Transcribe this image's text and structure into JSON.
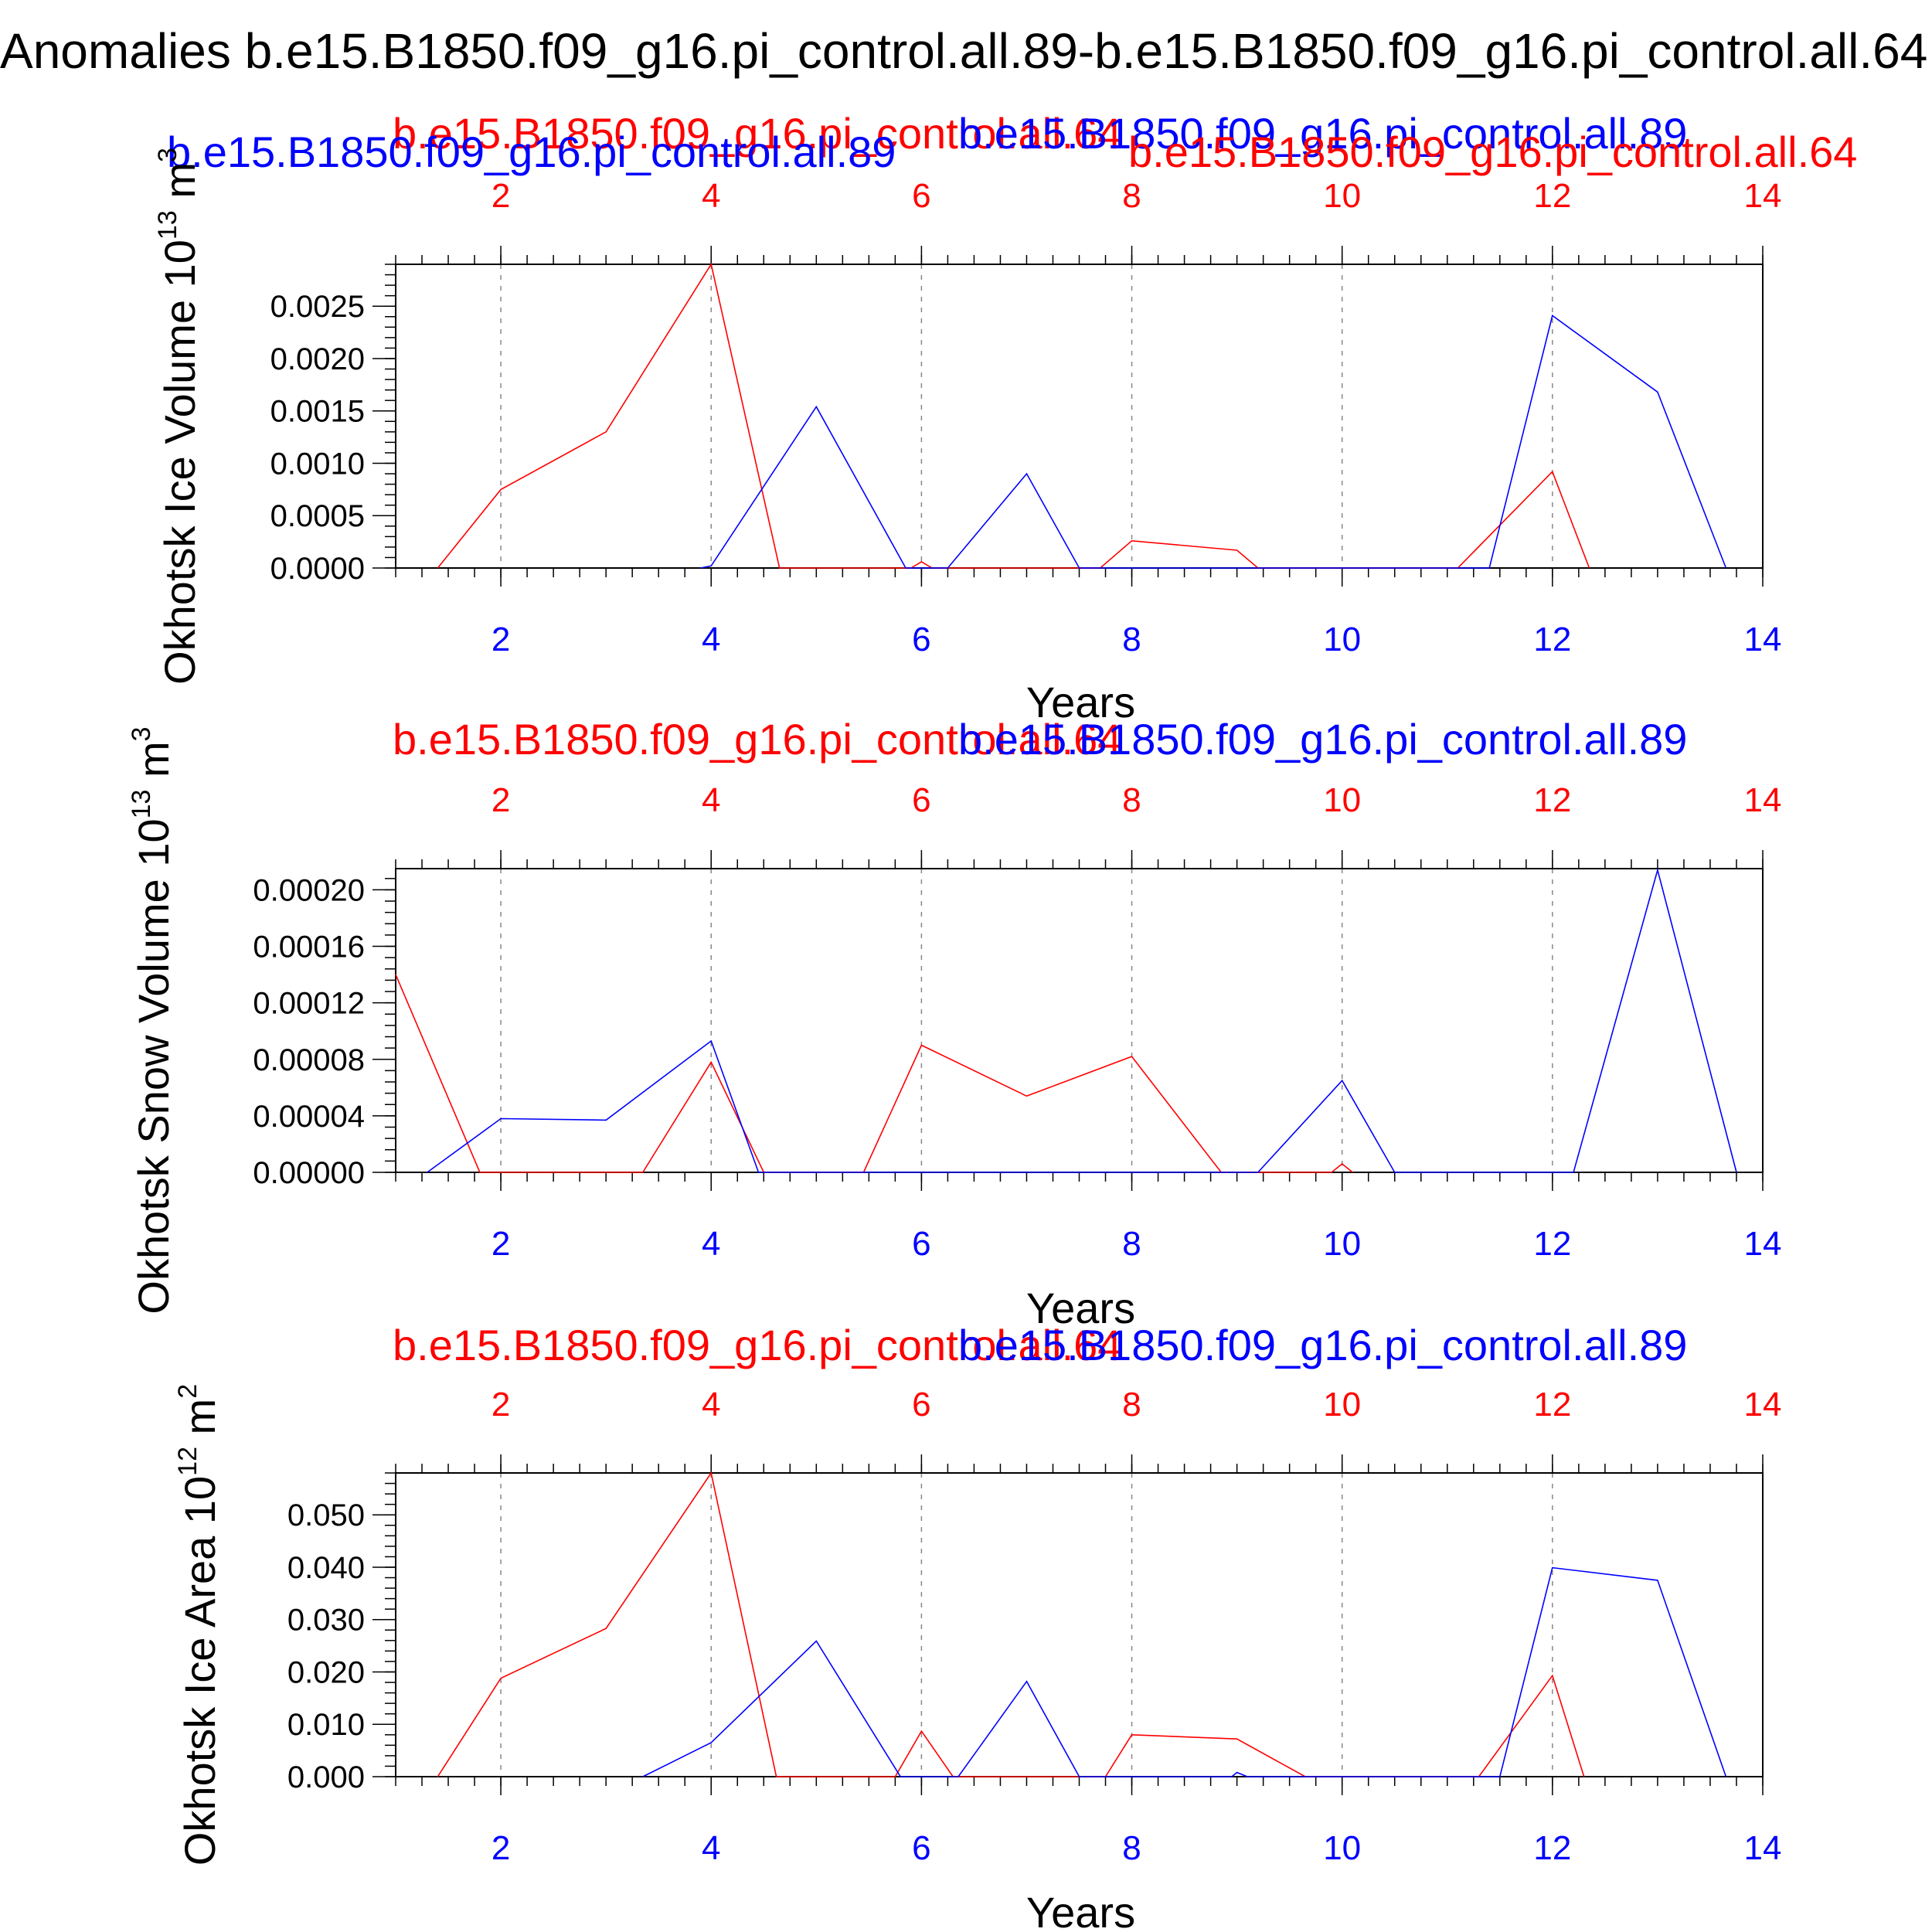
{
  "figure": {
    "title": "Anomalies b.e15.B1850.f09_g16.pi_control.all.89-b.e15.B1850.f09_g16.pi_control.all.64"
  },
  "colors": {
    "run_a": "#ff0000",
    "run_b": "#0000ff",
    "axes": "#000000",
    "grid": "#888888"
  },
  "chart_data": [
    {
      "type": "line",
      "title": "",
      "ylabel": "Okhotsk Ice Volume 10^13 m^3",
      "ylabel_parts": {
        "main": "Okhotsk Ice Volume 10",
        "exp": "13",
        "unit": " m",
        "unit_exp": "3"
      },
      "xlabel": "Years",
      "xlim": [
        1,
        14
      ],
      "ylim": [
        0,
        0.0029
      ],
      "x_ticks": [
        "2",
        "4",
        "6",
        "8",
        "10",
        "12",
        "14"
      ],
      "y_ticks": [
        {
          "value": 0,
          "label": "0.0000"
        },
        {
          "value": 0.0005,
          "label": "0.0005"
        },
        {
          "value": 0.001,
          "label": "0.0010"
        },
        {
          "value": 0.0015,
          "label": "0.0015"
        },
        {
          "value": 0.002,
          "label": "0.0020"
        },
        {
          "value": 0.0025,
          "label": "0.0025"
        }
      ],
      "series": [
        {
          "name": "b.e15.B1850.f09_g16.pi_control.all.64",
          "color": "#ff0000",
          "x": [
            1.4,
            2,
            3,
            4,
            4.65,
            5.9,
            6,
            6.1,
            7.7,
            8,
            9,
            9.2,
            11.1,
            12,
            12.35
          ],
          "y": [
            0,
            0.00075,
            0.0013,
            0.0029,
            0,
            0,
            6e-05,
            0,
            0,
            0.00026,
            0.00017,
            0,
            0,
            0.00092,
            0
          ]
        },
        {
          "name": "b.e15.B1850.f09_g16.pi_control.all.89",
          "color": "#0000ff",
          "x": [
            3.9,
            4,
            5,
            5.85,
            6.25,
            7,
            7.5,
            11.4,
            12,
            13,
            13.65
          ],
          "y": [
            0,
            2e-05,
            0.00154,
            0,
            0,
            0.0009,
            0,
            0,
            0.00241,
            0.00168,
            0
          ]
        }
      ]
    },
    {
      "type": "line",
      "title": "",
      "ylabel": "Okhotsk Snow Volume 10^13 m^3",
      "ylabel_parts": {
        "main": "Okhotsk Snow Volume 10",
        "exp": "13",
        "unit": " m",
        "unit_exp": "3"
      },
      "xlabel": "Years",
      "xlim": [
        1,
        14
      ],
      "ylim": [
        0,
        0.000215
      ],
      "x_ticks": [
        "2",
        "4",
        "6",
        "8",
        "10",
        "12",
        "14"
      ],
      "y_ticks": [
        {
          "value": 0,
          "label": "0.00000"
        },
        {
          "value": 4e-05,
          "label": "0.00004"
        },
        {
          "value": 8e-05,
          "label": "0.00008"
        },
        {
          "value": 0.00012,
          "label": "0.00012"
        },
        {
          "value": 0.00016,
          "label": "0.00016"
        },
        {
          "value": 0.0002,
          "label": "0.00020"
        }
      ],
      "series": [
        {
          "name": "b.e15.B1850.f09_g16.pi_control.all.64",
          "color": "#ff0000",
          "x": [
            1,
            1.8,
            3.35,
            4,
            4.5,
            5.45,
            6,
            7,
            8,
            8.85,
            9.9,
            10,
            10.1
          ],
          "y": [
            0.00014,
            0,
            0,
            7.8e-05,
            0,
            0,
            9e-05,
            5.4e-05,
            8.2e-05,
            0,
            0,
            6e-06,
            0
          ]
        },
        {
          "name": "b.e15.B1850.f09_g16.pi_control.all.89",
          "color": "#0000ff",
          "x": [
            1.3,
            2,
            3,
            4,
            4.45,
            9.2,
            10,
            10.5,
            12.2,
            13,
            13.75
          ],
          "y": [
            0,
            3.8e-05,
            3.7e-05,
            9.3e-05,
            0,
            0,
            6.5e-05,
            0,
            0,
            0.000214,
            0
          ]
        }
      ]
    },
    {
      "type": "line",
      "title": "",
      "ylabel": "Okhotsk Ice Area 10^12 m^2",
      "ylabel_parts": {
        "main": "Okhotsk Ice Area 10",
        "exp": "12",
        "unit": " m",
        "unit_exp": "2"
      },
      "xlabel": "Years",
      "xlim": [
        1,
        14
      ],
      "ylim": [
        0,
        0.058
      ],
      "x_ticks": [
        "2",
        "4",
        "6",
        "8",
        "10",
        "12",
        "14"
      ],
      "y_ticks": [
        {
          "value": 0,
          "label": "0.000"
        },
        {
          "value": 0.01,
          "label": "0.010"
        },
        {
          "value": 0.02,
          "label": "0.020"
        },
        {
          "value": 0.03,
          "label": "0.030"
        },
        {
          "value": 0.04,
          "label": "0.040"
        },
        {
          "value": 0.05,
          "label": "0.050"
        }
      ],
      "series": [
        {
          "name": "b.e15.B1850.f09_g16.pi_control.all.64",
          "color": "#ff0000",
          "x": [
            1.4,
            2,
            3,
            4,
            4.62,
            5.75,
            6,
            6.3,
            7.75,
            8,
            9,
            9.65,
            11.3,
            12,
            12.3
          ],
          "y": [
            0,
            0.0188,
            0.0283,
            0.058,
            0,
            0,
            0.0087,
            0,
            0,
            0.008,
            0.0072,
            0,
            0,
            0.0193,
            0
          ]
        },
        {
          "name": "b.e15.B1850.f09_g16.pi_control.all.89",
          "color": "#0000ff",
          "x": [
            3.35,
            4,
            5,
            5.8,
            6.35,
            7,
            7.5,
            8.95,
            9,
            9.1,
            11.5,
            12,
            13,
            13.65
          ],
          "y": [
            0,
            0.0065,
            0.0259,
            0,
            0,
            0.0182,
            0,
            0,
            0.0008,
            0,
            0,
            0.0399,
            0.0375,
            0
          ]
        }
      ]
    }
  ]
}
